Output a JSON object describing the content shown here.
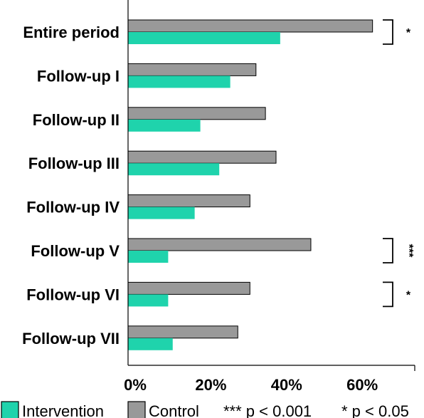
{
  "chart_data": {
    "type": "bar",
    "orientation": "horizontal",
    "categories": [
      "Entire period",
      "Follow-up I",
      "Follow-up II",
      "Follow-up III",
      "Follow-up IV",
      "Follow-up V",
      "Follow-up VI",
      "Follow-up VII"
    ],
    "series": [
      {
        "name": "Control",
        "color": "#999999",
        "values": [
          64.6,
          33.8,
          36.3,
          39.1,
          32.2,
          48.3,
          32.2,
          29.0
        ]
      },
      {
        "name": "Intervention",
        "color": "#1fd3ac",
        "values": [
          40.2,
          27.0,
          19.1,
          24.1,
          17.6,
          10.6,
          10.6,
          11.8
        ]
      }
    ],
    "x_ticks": [
      "0%",
      "20%",
      "40%",
      "60%"
    ],
    "x_tick_values": [
      0,
      20,
      40,
      60
    ],
    "xlim": [
      0,
      77
    ],
    "xlabel": "",
    "ylabel": "",
    "grid": false,
    "legend_position": "bottom",
    "significance": [
      {
        "category": "Entire period",
        "mark": "*"
      },
      {
        "category": "Follow-up V",
        "mark": "***"
      },
      {
        "category": "Follow-up VI",
        "mark": "*"
      }
    ],
    "footnotes": [
      "*** p < 0.001",
      "* p < 0.05"
    ]
  }
}
